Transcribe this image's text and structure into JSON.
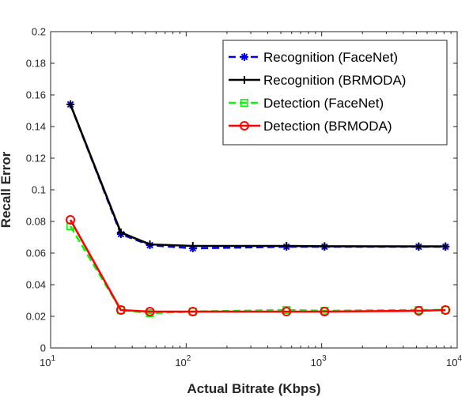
{
  "chart_data": {
    "type": "line",
    "xlabel": "Actual Bitrate (Kbps)",
    "ylabel": "Recall Error",
    "xscale": "log",
    "xlim": [
      10,
      10000
    ],
    "ylim": [
      0,
      0.2
    ],
    "grid": false,
    "legend_position": "top-right",
    "x_ticks": [
      {
        "value": 10,
        "base": "10",
        "exp": "1"
      },
      {
        "value": 100,
        "base": "10",
        "exp": "2"
      },
      {
        "value": 1000,
        "base": "10",
        "exp": "3"
      },
      {
        "value": 10000,
        "base": "10",
        "exp": "4"
      }
    ],
    "y_ticks": [
      {
        "value": 0,
        "label": "0"
      },
      {
        "value": 0.02,
        "label": "0.02"
      },
      {
        "value": 0.04,
        "label": "0.04"
      },
      {
        "value": 0.06,
        "label": "0.06"
      },
      {
        "value": 0.08,
        "label": "0.08"
      },
      {
        "value": 0.1,
        "label": "0.1"
      },
      {
        "value": 0.12,
        "label": "0.12"
      },
      {
        "value": 0.14,
        "label": "0.14"
      },
      {
        "value": 0.16,
        "label": "0.16"
      },
      {
        "value": 0.18,
        "label": "0.18"
      },
      {
        "value": 0.2,
        "label": "0.2"
      }
    ],
    "series": [
      {
        "name": "Recognition (FaceNet)",
        "color": "#0000ff",
        "dash": "dashed",
        "marker": "asterisk",
        "x": [
          14,
          33,
          54,
          112,
          550,
          1050,
          5200,
          8200
        ],
        "y": [
          0.154,
          0.072,
          0.065,
          0.063,
          0.064,
          0.064,
          0.064,
          0.064
        ]
      },
      {
        "name": "Recognition (BRMODA)",
        "color": "#000000",
        "dash": "solid",
        "marker": "plus",
        "x": [
          14,
          33,
          54,
          112,
          550,
          1050,
          5200,
          8200
        ],
        "y": [
          0.154,
          0.073,
          0.0655,
          0.0645,
          0.0645,
          0.0643,
          0.0642,
          0.0642
        ]
      },
      {
        "name": "Detection (FaceNet)",
        "color": "#00ff00",
        "dash": "dashed",
        "marker": "square",
        "x": [
          14,
          33,
          54,
          112,
          550,
          1050,
          5200,
          8200
        ],
        "y": [
          0.077,
          0.024,
          0.022,
          0.023,
          0.024,
          0.0235,
          0.024,
          0.024
        ]
      },
      {
        "name": "Detection (BRMODA)",
        "color": "#ff0000",
        "dash": "solid",
        "marker": "circle",
        "x": [
          14,
          33,
          54,
          112,
          550,
          1050,
          5200,
          8200
        ],
        "y": [
          0.081,
          0.024,
          0.023,
          0.023,
          0.023,
          0.023,
          0.0235,
          0.024
        ]
      }
    ]
  }
}
